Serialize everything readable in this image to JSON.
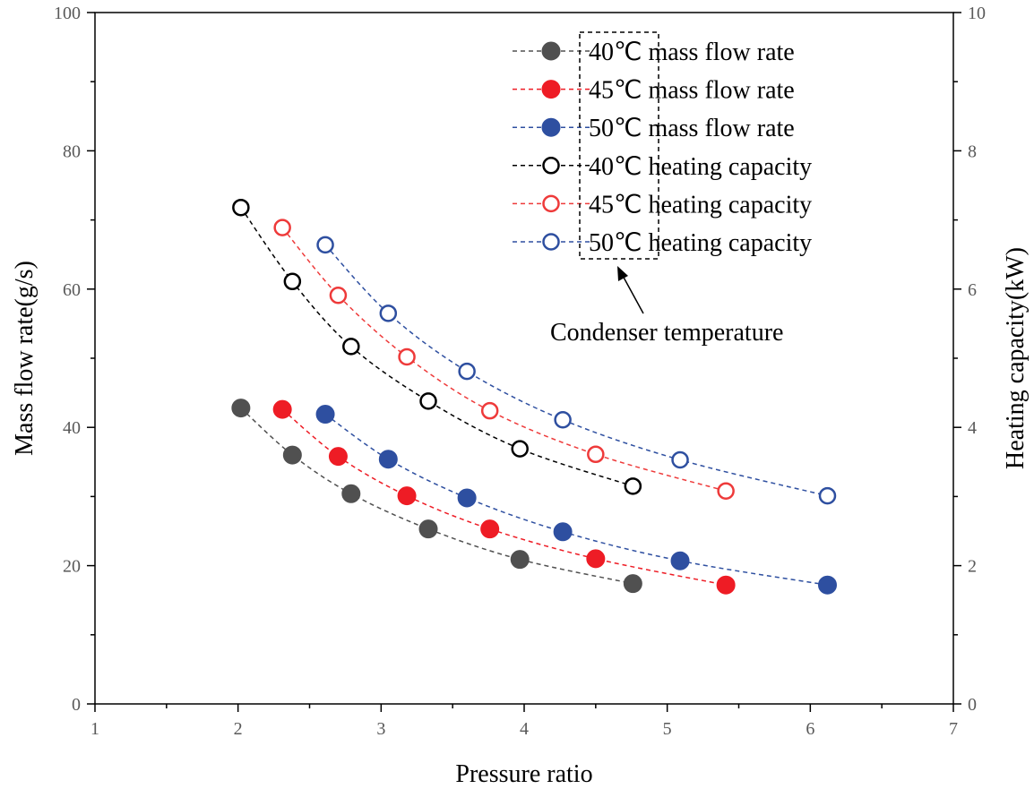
{
  "chart_data": {
    "type": "scatter",
    "xlabel": "Pressure ratio",
    "ylabel": "Mass flow rate(g/s)",
    "y2label": "Heating capacity(kW)",
    "xlim": [
      1,
      7
    ],
    "ylim": [
      0,
      100
    ],
    "y2lim": [
      0,
      10
    ],
    "xticks": [
      "1",
      "2",
      "3",
      "4",
      "5",
      "6",
      "7"
    ],
    "yticks": [
      "0",
      "20",
      "40",
      "60",
      "80",
      "100"
    ],
    "y2ticks": [
      "0",
      "2",
      "4",
      "6",
      "8",
      "10"
    ],
    "legend_position": "top-right",
    "series": [
      {
        "name": "40℃ mass flow rate",
        "axis": "left",
        "marker": "filled",
        "color": "#505050",
        "x": [
          2.02,
          2.38,
          2.79,
          3.33,
          3.97,
          4.76
        ],
        "y": [
          42.8,
          36.0,
          30.4,
          25.3,
          20.9,
          17.4
        ]
      },
      {
        "name": "45℃ mass flow rate",
        "axis": "left",
        "marker": "filled",
        "color": "#ee1c25",
        "x": [
          2.31,
          2.7,
          3.18,
          3.76,
          4.5,
          5.41
        ],
        "y": [
          42.6,
          35.8,
          30.1,
          25.3,
          21.0,
          17.2
        ]
      },
      {
        "name": "50℃ mass flow rate",
        "axis": "left",
        "marker": "filled",
        "color": "#2e4fa0",
        "x": [
          2.61,
          3.05,
          3.6,
          4.27,
          5.09,
          6.12
        ],
        "y": [
          41.9,
          35.4,
          29.8,
          24.9,
          20.7,
          17.2
        ]
      },
      {
        "name": "40℃ heating capacity",
        "axis": "right",
        "marker": "open",
        "color": "#000000",
        "x": [
          2.02,
          2.38,
          2.79,
          3.33,
          3.97,
          4.76
        ],
        "y": [
          7.18,
          6.11,
          5.17,
          4.38,
          3.69,
          3.15
        ]
      },
      {
        "name": "45℃ heating capacity",
        "axis": "right",
        "marker": "open",
        "color": "#ee3a3a",
        "x": [
          2.31,
          2.7,
          3.18,
          3.76,
          4.5,
          5.41
        ],
        "y": [
          6.89,
          5.91,
          5.02,
          4.24,
          3.61,
          3.08
        ]
      },
      {
        "name": "50℃ heating capacity",
        "axis": "right",
        "marker": "open",
        "color": "#2e4fa0",
        "x": [
          2.61,
          3.05,
          3.6,
          4.27,
          5.09,
          6.12
        ],
        "y": [
          6.64,
          5.65,
          4.81,
          4.11,
          3.53,
          3.01
        ]
      }
    ],
    "annotations": [
      {
        "text": "Condenser temperature",
        "target": "legend temperature labels"
      }
    ]
  }
}
